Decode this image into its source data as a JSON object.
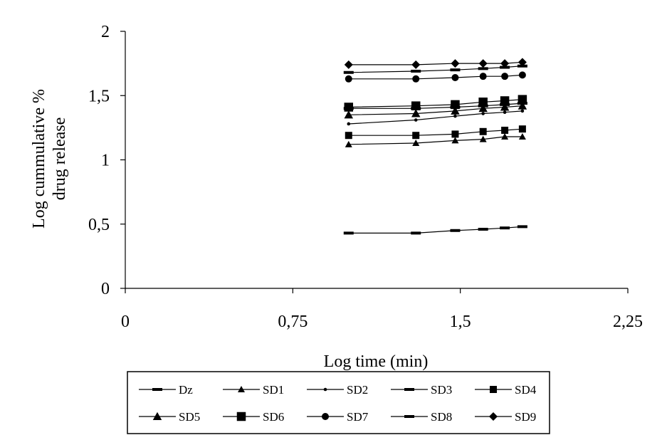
{
  "chart_data": {
    "type": "line",
    "xlabel": "Log time (min)",
    "ylabel": "Log cummulative % drug release",
    "ylabel_lines": [
      "Log cummulative %",
      "drug release"
    ],
    "xlim": [
      0,
      2.25
    ],
    "ylim": [
      0,
      2
    ],
    "x_ticks": [
      0,
      0.75,
      1.5,
      2.25
    ],
    "x_tick_labels": [
      "0",
      "0,75",
      "1,5",
      "2,25"
    ],
    "y_ticks": [
      0,
      0.5,
      1,
      1.5,
      2
    ],
    "y_tick_labels": [
      "0",
      "0,5",
      "1",
      "1,5",
      "2"
    ],
    "grid": false,
    "legend_position": "bottom",
    "x": [
      1.0,
      1.301,
      1.477,
      1.602,
      1.699,
      1.778
    ],
    "series": [
      {
        "name": "Dz",
        "marker": "dash",
        "values": [
          0.43,
          0.43,
          0.45,
          0.46,
          0.47,
          0.48
        ]
      },
      {
        "name": "SD1",
        "marker": "triangle",
        "values": [
          1.12,
          1.13,
          1.15,
          1.16,
          1.18,
          1.18
        ]
      },
      {
        "name": "SD2",
        "marker": "dot",
        "values": [
          1.28,
          1.31,
          1.34,
          1.36,
          1.37,
          1.38
        ]
      },
      {
        "name": "SD3",
        "marker": "dash",
        "values": [
          1.4,
          1.4,
          1.41,
          1.42,
          1.43,
          1.44
        ]
      },
      {
        "name": "SD4",
        "marker": "square",
        "values": [
          1.19,
          1.19,
          1.2,
          1.22,
          1.23,
          1.24
        ]
      },
      {
        "name": "SD5",
        "marker": "triangle",
        "values": [
          1.35,
          1.36,
          1.38,
          1.4,
          1.41,
          1.42
        ]
      },
      {
        "name": "SD6",
        "marker": "square",
        "values": [
          1.41,
          1.42,
          1.43,
          1.45,
          1.46,
          1.47
        ]
      },
      {
        "name": "SD7",
        "marker": "circle",
        "values": [
          1.63,
          1.63,
          1.64,
          1.65,
          1.65,
          1.66
        ]
      },
      {
        "name": "SD8",
        "marker": "dash",
        "values": [
          1.68,
          1.69,
          1.7,
          1.71,
          1.72,
          1.73
        ]
      },
      {
        "name": "SD9",
        "marker": "diamond",
        "values": [
          1.74,
          1.74,
          1.75,
          1.75,
          1.75,
          1.76
        ]
      }
    ]
  }
}
